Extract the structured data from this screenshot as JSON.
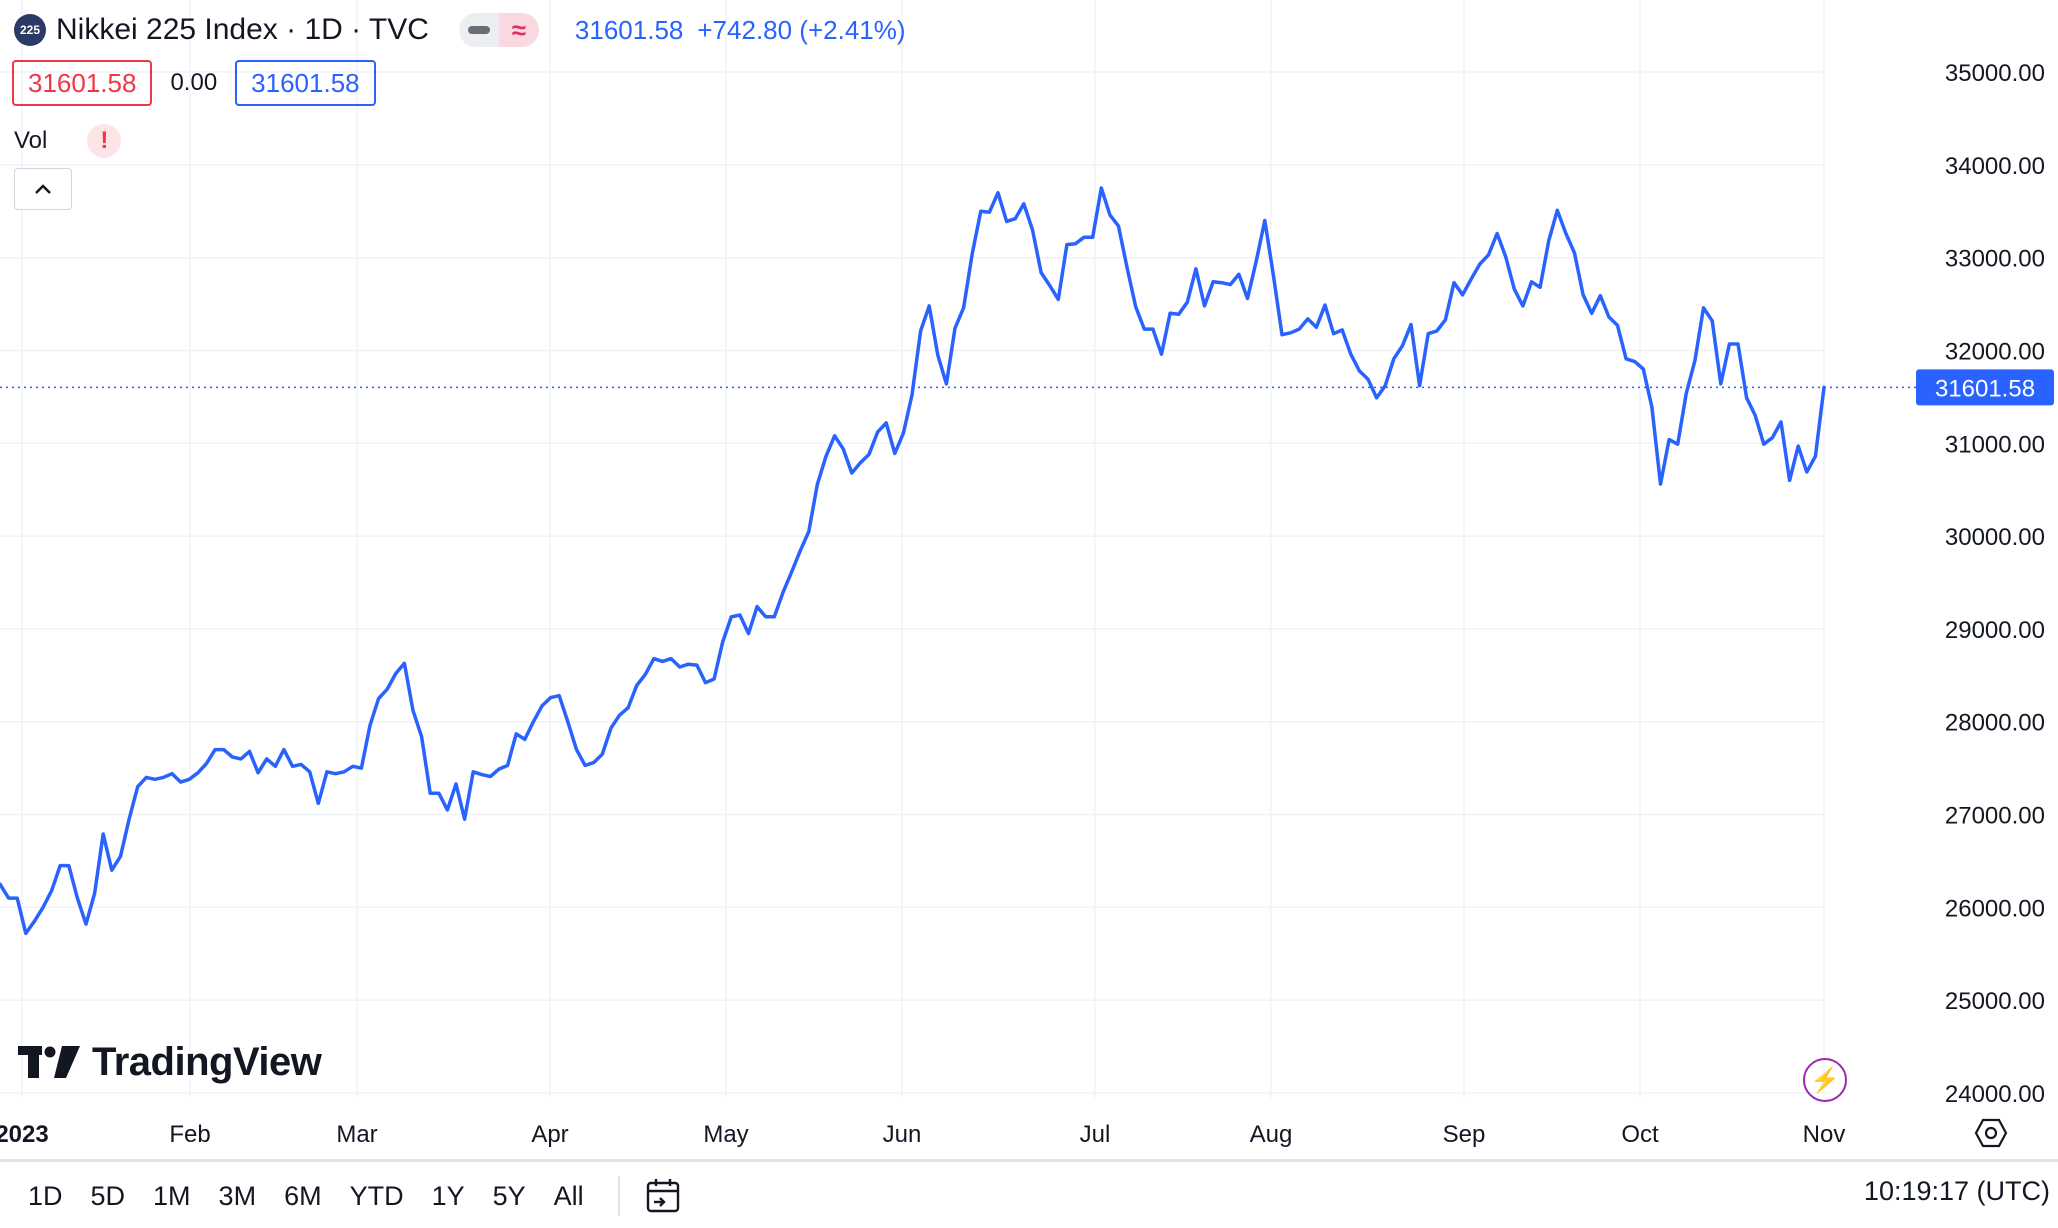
{
  "header": {
    "badge": "225",
    "symbol_title": "Nikkei 225 Index · 1D · TVC",
    "price": "31601.58",
    "change": "+742.80 (+2.41%)",
    "wave_glyph": "≈"
  },
  "ohlc": {
    "left_value": "31601.58",
    "middle_value": "0.00",
    "right_value": "31601.58"
  },
  "volume": {
    "label": "Vol",
    "warning_glyph": "!"
  },
  "brand": {
    "name": "TradingView"
  },
  "bottom": {
    "ranges": [
      "1D",
      "5D",
      "1M",
      "3M",
      "6M",
      "YTD",
      "1Y",
      "5Y",
      "All"
    ],
    "clock": "10:19:17 (UTC)"
  },
  "colors": {
    "line": "#2962ff",
    "grid": "#f0f3fa",
    "last_price_bg": "#2962ff",
    "negative": "#f23645"
  },
  "icons": {
    "collapse": "chevron-up-icon",
    "date_range": "calendar-goto-icon",
    "lightning": "lightning-icon",
    "settings": "hexagon-settings-icon"
  },
  "chart_data": {
    "type": "line",
    "ylim": [
      24000,
      35500
    ],
    "y_ticks": [
      "35000.00",
      "34000.00",
      "33000.00",
      "32000.00",
      "31000.00",
      "30000.00",
      "29000.00",
      "28000.00",
      "27000.00",
      "26000.00",
      "25000.00",
      "24000.00"
    ],
    "x_ticks": [
      "2023",
      "Feb",
      "Mar",
      "Apr",
      "May",
      "Jun",
      "Jul",
      "Aug",
      "Sep",
      "Oct",
      "Nov"
    ],
    "last_price": 31601.58,
    "last_price_label": "31601.58",
    "grid": true,
    "series": [
      {
        "values": [
          26250,
          26100,
          26100,
          25720,
          25850,
          26000,
          26180,
          26450,
          26450,
          26100,
          25820,
          26150,
          26790,
          26400,
          26550,
          26950,
          27300,
          27400,
          27380,
          27400,
          27440,
          27350,
          27380,
          27450,
          27550,
          27700,
          27700,
          27620,
          27600,
          27680,
          27450,
          27600,
          27520,
          27700,
          27520,
          27540,
          27460,
          27120,
          27460,
          27440,
          27460,
          27520,
          27500,
          27960,
          28250,
          28350,
          28520,
          28630,
          28120,
          27840,
          27230,
          27230,
          27050,
          27330,
          26950,
          27460,
          27430,
          27410,
          27490,
          27530,
          27870,
          27810,
          28000,
          28170,
          28260,
          28280,
          28000,
          27700,
          27530,
          27560,
          27650,
          27930,
          28070,
          28150,
          28390,
          28510,
          28680,
          28650,
          28680,
          28590,
          28620,
          28610,
          28420,
          28460,
          28860,
          29130,
          29150,
          28950,
          29240,
          29130,
          29130,
          29390,
          29610,
          29840,
          30050,
          30560,
          30860,
          31080,
          30940,
          30680,
          30790,
          30880,
          31120,
          31220,
          30890,
          31110,
          31520,
          32210,
          32480,
          31950,
          31640,
          32240,
          32460,
          33040,
          33500,
          33490,
          33700,
          33390,
          33420,
          33580,
          33300,
          32840,
          32700,
          32550,
          33140,
          33150,
          33220,
          33220,
          33750,
          33460,
          33340,
          32890,
          32470,
          32230,
          32230,
          31960,
          32400,
          32390,
          32520,
          32880,
          32480,
          32740,
          32730,
          32710,
          32820,
          32560,
          32960,
          33400,
          32810,
          32170,
          32190,
          32230,
          32340,
          32250,
          32490,
          32180,
          32220,
          31960,
          31780,
          31690,
          31490,
          31620,
          31910,
          32050,
          32280,
          31620,
          32180,
          32210,
          32330,
          32730,
          32600,
          32770,
          32930,
          33030,
          33260,
          33010,
          32660,
          32480,
          32740,
          32680,
          33180,
          33510,
          33260,
          33050,
          32600,
          32400,
          32590,
          32360,
          32270,
          31910,
          31880,
          31800,
          31390,
          30560,
          31040,
          30990,
          31540,
          31890,
          32460,
          32320,
          31640,
          32070,
          32070,
          31490,
          31300,
          30990,
          31060,
          31230,
          30600,
          30970,
          30690,
          30860,
          31601.58
        ]
      }
    ]
  }
}
